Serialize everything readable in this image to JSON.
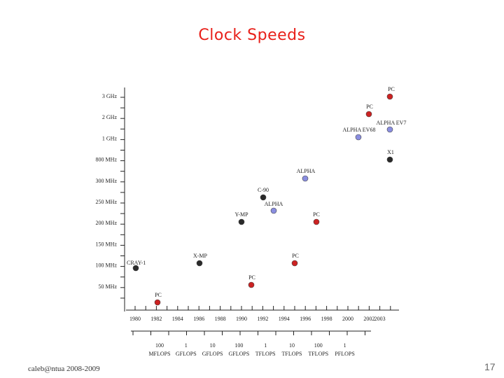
{
  "slide": {
    "title": "Clock Speeds",
    "footer": "caleb@ntua 2008-2009",
    "page_number": "17"
  },
  "chart_data": {
    "type": "scatter",
    "title": "Clock Speeds",
    "xlabel": "",
    "ylabel": "",
    "y_tick_labels": [
      "3 GHz",
      "2 GHz",
      "1 GHz",
      "800 MHz",
      "300 MHz",
      "250 MHz",
      "200 MHz",
      "150 MHz",
      "100 MHz",
      "50 MHz"
    ],
    "x_tick_labels": [
      "1980",
      "1982",
      "1984",
      "1986",
      "1988",
      "1990",
      "1992",
      "1994",
      "1996",
      "1998",
      "2000",
      "2002",
      "2003"
    ],
    "perf_tick_labels": [
      {
        "top": "100",
        "bottom": "MFLOPS"
      },
      {
        "top": "1",
        "bottom": "GFLOPS"
      },
      {
        "top": "10",
        "bottom": "GFLOPS"
      },
      {
        "top": "100",
        "bottom": "GFLOPS"
      },
      {
        "top": "1",
        "bottom": "TFLOPS"
      },
      {
        "top": "10",
        "bottom": "TFLOPS"
      },
      {
        "top": "100",
        "bottom": "TFLOPS"
      },
      {
        "top": "1",
        "bottom": "PFLOPS"
      }
    ],
    "points": [
      {
        "label": "CRAY-1",
        "year": 1980.0,
        "level": 9.1,
        "color": "#2a2a2a"
      },
      {
        "label": "PC",
        "year": 1982.0,
        "level": 10.85,
        "color": "#cc2222"
      },
      {
        "label": "X-MP",
        "year": 1986.0,
        "level": 8.8,
        "color": "#2a2a2a"
      },
      {
        "label": "Y-MP",
        "year": 1990.0,
        "level": 6.95,
        "color": "#2a2a2a"
      },
      {
        "label": "PC",
        "year": 1991.0,
        "level": 9.85,
        "color": "#cc2222"
      },
      {
        "label": "C-90",
        "year": 1992.0,
        "level": 5.95,
        "color": "#2a2a2a"
      },
      {
        "label": "ALPHA",
        "year": 1993.0,
        "level": 6.45,
        "color": "#8a8ee0"
      },
      {
        "label": "PC",
        "year": 1995.0,
        "level": 8.8,
        "color": "#cc2222"
      },
      {
        "label": "ALPHA",
        "year": 1996.0,
        "level": 5.0,
        "color": "#8a8ee0"
      },
      {
        "label": "PC",
        "year": 1997.0,
        "level": 7.0,
        "color": "#cc2222"
      },
      {
        "label": "ALPHA EV68",
        "year": 2001.0,
        "level": 1.9,
        "color": "#8a8ee0"
      },
      {
        "label": "PC",
        "year": 2002.0,
        "level": 0.85,
        "color": "#cc2222"
      },
      {
        "label": "ALPHA EV7",
        "year": 2003.0,
        "level": 1.55,
        "color": "#8a8ee0"
      },
      {
        "label": "PC",
        "year": 2003.0,
        "level": 0.05,
        "color": "#cc2222"
      },
      {
        "label": "X1",
        "year": 2003.0,
        "level": 3.0,
        "color": "#2a2a2a"
      }
    ]
  }
}
